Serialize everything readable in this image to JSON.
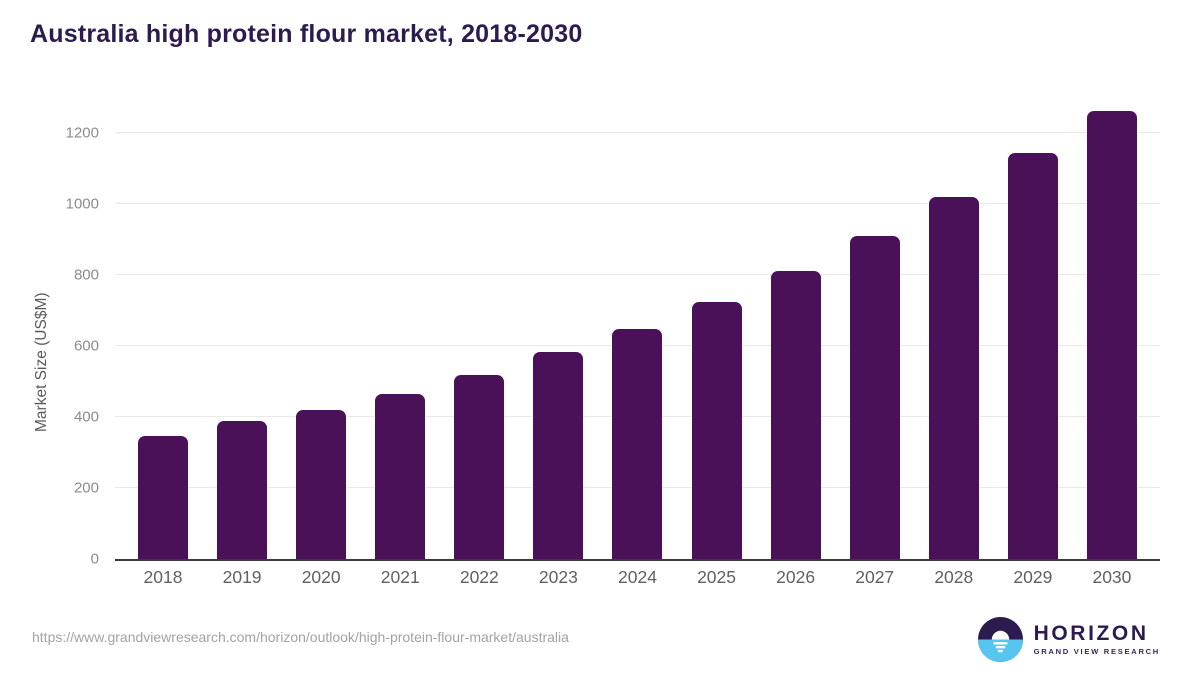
{
  "page": {
    "source_url": "https://www.grandviewresearch.com/horizon/outlook/high-protein-flour-market/australia"
  },
  "logo": {
    "name": "HORIZON",
    "subtitle": "GRAND VIEW RESEARCH",
    "icon": "horizon-sun-over-water-icon",
    "dark_color": "#2d1a4e",
    "blue_color": "#56c5ef"
  },
  "chart_data": {
    "type": "bar",
    "title": "Australia high protein flour market, 2018-2030",
    "xlabel": "",
    "ylabel": "Market Size (US$M)",
    "categories": [
      "2018",
      "2019",
      "2020",
      "2021",
      "2022",
      "2023",
      "2024",
      "2025",
      "2026",
      "2027",
      "2028",
      "2029",
      "2030"
    ],
    "values": [
      348,
      389,
      419,
      466,
      518,
      583,
      650,
      726,
      812,
      912,
      1020,
      1144,
      1263
    ],
    "ylim": [
      0,
      1300
    ],
    "yticks": [
      0,
      200,
      400,
      600,
      800,
      1000,
      1200
    ],
    "grid": true,
    "legend": false,
    "bar_color": "#4a1158",
    "gridline_color": "#e9e9e9",
    "axis_line_color": "#3a3a3a",
    "title_color": "#2d1b4f"
  }
}
